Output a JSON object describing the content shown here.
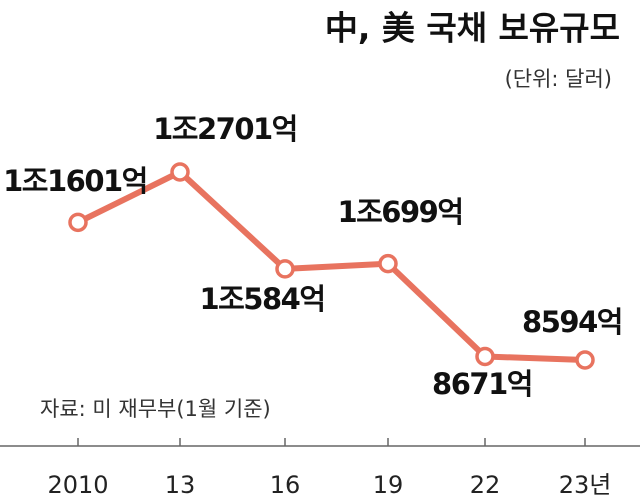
{
  "chart_data": {
    "type": "line",
    "title": "中, 美 국채 보유규모",
    "subtitle": "(단위: 달러)",
    "source": "자료: 미 재무부(1월 기준)",
    "categories": [
      "2010",
      "13",
      "16",
      "19",
      "22",
      "23년"
    ],
    "values": [
      11601,
      12701,
      10584,
      10699,
      8671,
      8594
    ],
    "value_labels": [
      "1조1601억",
      "1조2701억",
      "1조584억",
      "1조699억",
      "8671억",
      "8594억"
    ],
    "color": "#e8735f"
  }
}
